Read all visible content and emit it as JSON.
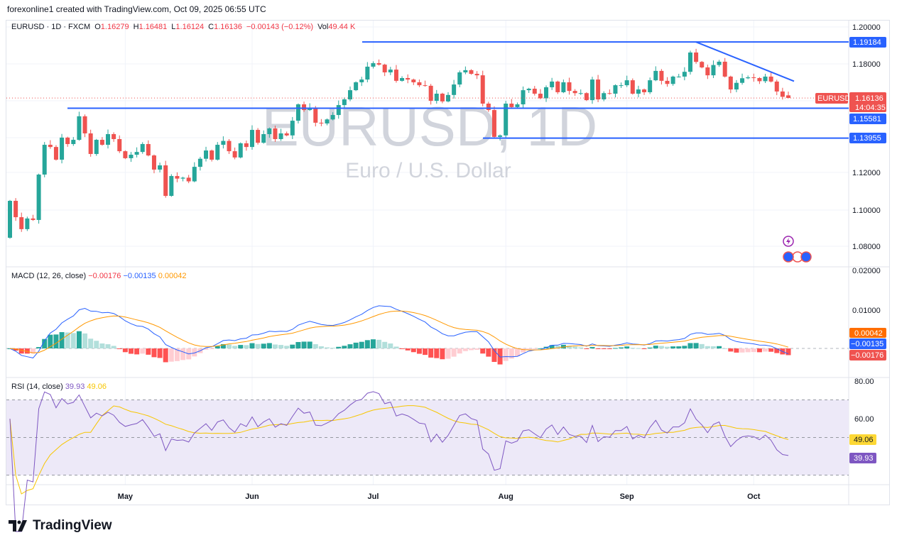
{
  "credit": "forexonline1 created with TradingView.com, Oct 09, 2025 06:55 UTC",
  "legend": {
    "symbol": "EURUSD · 1D · FXCM",
    "o_label": "O",
    "o": "1.16279",
    "h_label": "H",
    "h": "1.16481",
    "l_label": "L",
    "l": "1.16124",
    "c_label": "C",
    "c": "1.16136",
    "change": "−0.00143 (−0.12%)",
    "vol_label": "Vol",
    "vol": "49.44 K"
  },
  "watermark": {
    "title": "EURUSD, 1D",
    "subtitle": "Euro / U.S. Dollar"
  },
  "colors": {
    "up": "#26a69a",
    "down": "#ef5350",
    "line": "#2962ff",
    "macd": "#2962ff",
    "signal": "#ff9800",
    "rsi": "#7e57c2",
    "rsi_ma": "#f7c600",
    "rsi_band": "#ede9f8"
  },
  "price_axis": [
    "1.20000",
    "1.18000",
    "1.12000",
    "1.10000",
    "1.08000"
  ],
  "price_tags": {
    "resistance": "1.19184",
    "support1": "1.15581",
    "support2": "1.13955",
    "symbol": "EURUSD",
    "last": "1.16136",
    "countdown": "14:04:35"
  },
  "macd": {
    "label": "MACD (12, 26, close)",
    "hist": "−0.00176",
    "macd": "−0.00135",
    "signal": "0.00042",
    "axis": [
      "0.02000",
      "0.01000"
    ]
  },
  "rsi": {
    "label": "RSI (14, close)",
    "value": "39.93",
    "ma": "49.06",
    "axis": [
      "80.00",
      "60.00"
    ]
  },
  "time_axis": [
    "May",
    "Jun",
    "Jul",
    "Aug",
    "Sep",
    "Oct"
  ],
  "brand": "TradingView",
  "chart_data": {
    "type": "candlestick",
    "symbol": "EURUSD",
    "interval": "1D",
    "first_open": 1.0853,
    "close": [
      1.1054,
      1.0965,
      1.09,
      1.0958,
      1.095,
      1.1197,
      1.1359,
      1.1347,
      1.1278,
      1.1398,
      1.1363,
      1.1386,
      1.1514,
      1.1421,
      1.1309,
      1.1386,
      1.1359,
      1.1417,
      1.139,
      1.1324,
      1.1286,
      1.1305,
      1.132,
      1.1363,
      1.1301,
      1.1224,
      1.1247,
      1.1081,
      1.1189,
      1.1175,
      1.118,
      1.116,
      1.1239,
      1.1283,
      1.1328,
      1.1278,
      1.1359,
      1.138,
      1.1324,
      1.129,
      1.1367,
      1.1347,
      1.144,
      1.137,
      1.1417,
      1.1448,
      1.139,
      1.1421,
      1.141,
      1.149,
      1.1579,
      1.1548,
      1.156,
      1.1479,
      1.1475,
      1.1497,
      1.1521,
      1.1575,
      1.1606,
      1.1656,
      1.1699,
      1.1714,
      1.1784,
      1.1803,
      1.1795,
      1.1753,
      1.1768,
      1.1707,
      1.1722,
      1.1714,
      1.1699,
      1.1683,
      1.168,
      1.1598,
      1.1637,
      1.1595,
      1.163,
      1.1687,
      1.1753,
      1.1765,
      1.1745,
      1.1737,
      1.1583,
      1.1548,
      1.1402,
      1.141,
      1.1583,
      1.1564,
      1.1579,
      1.1656,
      1.1664,
      1.1637,
      1.1612,
      1.1672,
      1.1703,
      1.1645,
      1.1699,
      1.1652,
      1.164,
      1.164,
      1.1602,
      1.1714,
      1.1606,
      1.164,
      1.1637,
      1.1683,
      1.1683,
      1.171,
      1.1637,
      1.166,
      1.1645,
      1.171,
      1.1761,
      1.1707,
      1.169,
      1.173,
      1.173,
      1.1756,
      1.1861,
      1.181,
      1.178,
      1.1737,
      1.1793,
      1.1811,
      1.173,
      1.166,
      1.1696,
      1.1721,
      1.1726,
      1.1722,
      1.1705,
      1.173,
      1.1703,
      1.1649,
      1.162,
      1.16136
    ],
    "last_bar": {
      "open": 1.16279,
      "high": 1.16481,
      "low": 1.16124,
      "close": 1.16136
    },
    "horizontal_levels": [
      1.19184,
      1.15581,
      1.13955
    ],
    "trendline": [
      1.19184,
      1.1705
    ],
    "ylim": [
      1.075,
      1.205
    ]
  }
}
